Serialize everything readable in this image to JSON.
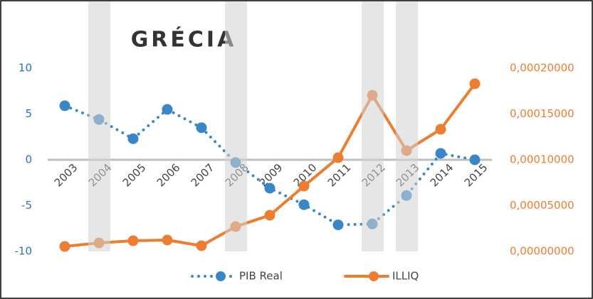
{
  "chart_data": {
    "type": "line",
    "title": "GRÉCIA",
    "categories": [
      "2003",
      "2004",
      "2005",
      "2006",
      "2007",
      "2008",
      "2009",
      "2010",
      "2011",
      "2012",
      "2013",
      "2014",
      "2015"
    ],
    "series": [
      {
        "name": "PIB Real",
        "color": "#3a87c8",
        "style": "dotted",
        "values": [
          5.9,
          4.4,
          2.3,
          5.5,
          3.5,
          -0.3,
          -3.1,
          -4.9,
          -7.1,
          -7.0,
          -3.9,
          0.7,
          0.0
        ]
      },
      {
        "name": "ILLIQ",
        "color": "#ed7d31",
        "style": "solid",
        "axis": "y2",
        "values": [
          5.4e-06,
          9.3e-06,
          1.16e-05,
          1.24e-05,
          6.2e-06,
          2.71e-05,
          3.95e-05,
          7.13e-05,
          0.0001023,
          0.0001705,
          0.00011,
          0.0001333,
          0.000183
        ]
      }
    ],
    "shaded_categories": [
      1,
      5,
      9,
      10
    ],
    "ylim": [
      -10,
      10
    ],
    "yticks": [
      -10,
      -5,
      0,
      5,
      10
    ],
    "y2lim": [
      0,
      0.0002
    ],
    "y2ticks": [
      {
        "value": 0,
        "label": "0,00000000"
      },
      {
        "value": 5e-05,
        "label": "0,00005000"
      },
      {
        "value": 0.0001,
        "label": "0,00010000"
      },
      {
        "value": 0.00015,
        "label": "0,00015000"
      },
      {
        "value": 0.0002,
        "label": "0,00020000"
      }
    ],
    "legend": "bottom"
  }
}
